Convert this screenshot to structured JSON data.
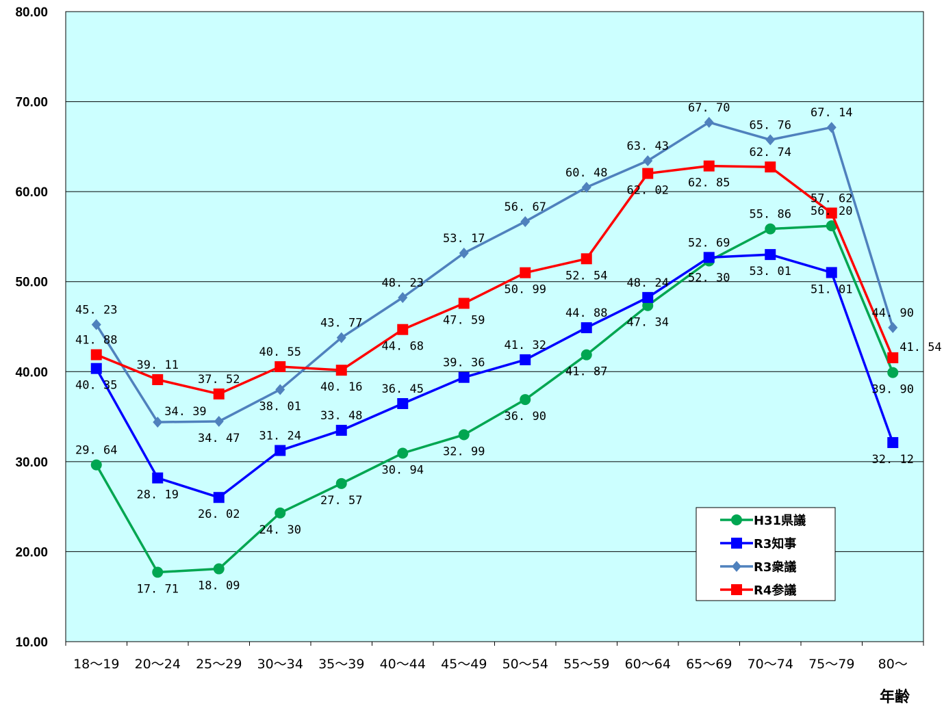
{
  "chart_data": {
    "type": "line",
    "title": "",
    "xlabel": "年齢",
    "ylabel": "",
    "ylim": [
      10,
      80
    ],
    "yticks": [
      "10.00",
      "20.00",
      "30.00",
      "40.00",
      "50.00",
      "60.00",
      "70.00",
      "80.00"
    ],
    "grid": true,
    "legend_position": "bottom-right",
    "plot_background": "#ccffff",
    "categories": [
      "18～19",
      "20～24",
      "25～29",
      "30～34",
      "35～39",
      "40～44",
      "45～49",
      "50～54",
      "55～59",
      "60～64",
      "65～69",
      "70～74",
      "75～79",
      "80～"
    ],
    "series": [
      {
        "name": "H31県議",
        "color": "#00a651",
        "marker": "circle",
        "values": [
          29.64,
          17.71,
          18.09,
          24.3,
          27.57,
          30.94,
          32.99,
          36.9,
          41.87,
          47.34,
          52.3,
          55.86,
          56.2,
          39.9
        ],
        "labels": [
          "29. 64",
          "17. 71",
          "18. 09",
          "24. 30",
          "27. 57",
          "30. 94",
          "32. 99",
          "36. 90",
          "41. 87",
          "47. 34",
          "52. 30",
          "55. 86",
          "56. 20",
          "39. 90"
        ]
      },
      {
        "name": "R3知事",
        "color": "#0000ff",
        "marker": "square",
        "values": [
          40.35,
          28.19,
          26.02,
          31.24,
          33.48,
          36.45,
          39.36,
          41.32,
          44.88,
          48.24,
          52.69,
          53.01,
          51.01,
          32.12
        ],
        "labels": [
          "40. 35",
          "28. 19",
          "26. 02",
          "31. 24",
          "33. 48",
          "36. 45",
          "39. 36",
          "41. 32",
          "44. 88",
          "48. 24",
          "52. 69",
          "53. 01",
          "51. 01",
          "32. 12"
        ]
      },
      {
        "name": "R3衆議",
        "color": "#4f81bd",
        "marker": "diamond",
        "values": [
          45.23,
          34.39,
          34.47,
          38.01,
          43.77,
          48.23,
          53.17,
          56.67,
          60.48,
          63.43,
          67.7,
          65.76,
          67.14,
          44.9
        ],
        "labels": [
          "45. 23",
          "34. 39",
          "34. 47",
          "38. 01",
          "43. 77",
          "48. 23",
          "53. 17",
          "56. 67",
          "60. 48",
          "63. 43",
          "67. 70",
          "65. 76",
          "67. 14",
          "44. 90"
        ]
      },
      {
        "name": "R4参議",
        "color": "#ff0000",
        "marker": "square",
        "values": [
          41.88,
          39.11,
          37.52,
          40.55,
          40.16,
          44.68,
          47.59,
          50.99,
          52.54,
          62.02,
          62.85,
          62.74,
          57.62,
          41.54
        ],
        "labels": [
          "41. 88",
          "39. 11",
          "37. 52",
          "40. 55",
          "40. 16",
          "44. 68",
          "47. 59",
          "50. 99",
          "52. 54",
          "62. 02",
          "62. 85",
          "62. 74",
          "57. 62",
          "41. 54"
        ]
      }
    ]
  }
}
